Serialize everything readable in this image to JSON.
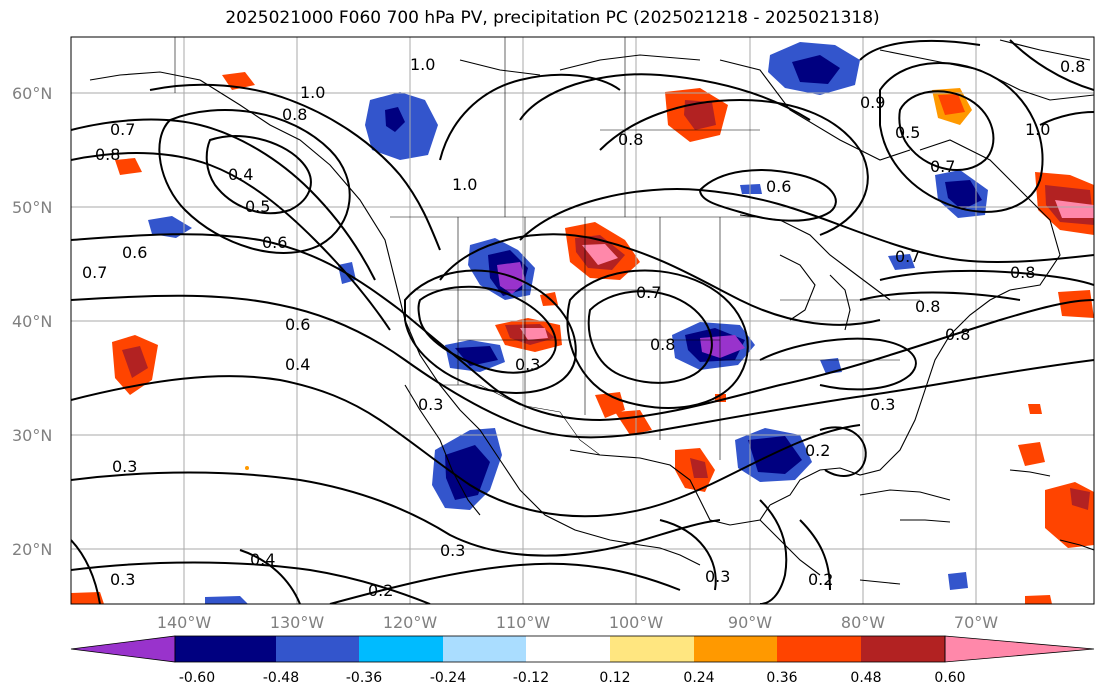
{
  "title": "2025021000 F060 700 hPa PV, precipitation PC (2025021218 - 2025021318)",
  "lat_labels": [
    "60°N",
    "50°N",
    "40°N",
    "30°N",
    "20°N"
  ],
  "lon_labels": [
    "140°W",
    "130°W",
    "120°W",
    "110°W",
    "100°W",
    "90°W",
    "80°W",
    "70°W"
  ],
  "colorbar": {
    "labels": [
      "-0.60",
      "-0.48",
      "-0.36",
      "-0.24",
      "-0.12",
      "0.12",
      "0.24",
      "0.36",
      "0.48",
      "0.60"
    ],
    "colors": [
      "#9933cc",
      "#000080",
      "#3355cc",
      "#00bbff",
      "#aaddff",
      "#ffffff",
      "#ffe680",
      "#ff9900",
      "#ff4400",
      "#b22222",
      "#ff88aa"
    ]
  },
  "contour_labels": [
    "1.0",
    "1.0",
    "0.8",
    "0.7",
    "0.8",
    "0.4",
    "0.5",
    "0.6",
    "1.0",
    "0.6",
    "0.7",
    "0.6",
    "0.4",
    "0.3",
    "0.3",
    "0.3",
    "0.2",
    "0.4",
    "0.3",
    "0.8",
    "0.7",
    "0.8",
    "0.6",
    "0.3",
    "0.2",
    "0.3",
    "0.2",
    "0.7",
    "0.8",
    "0.8",
    "0.8",
    "0.9",
    "0.5",
    "0.7",
    "1.0",
    "0.8",
    "0.3"
  ]
}
